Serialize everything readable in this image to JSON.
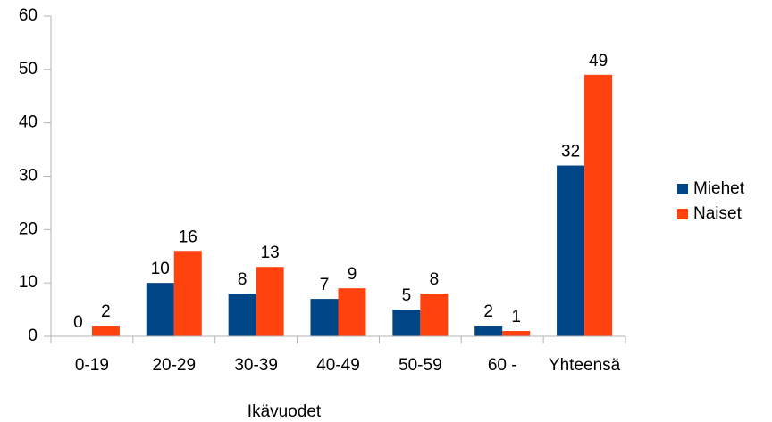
{
  "chart_data": {
    "type": "bar",
    "x_label": "Ikävuodet",
    "categories": [
      "0-19",
      "20-29",
      "30-39",
      "40-49",
      "50-59",
      "60 -",
      "Yhteensä"
    ],
    "series": [
      {
        "name": "Miehet",
        "color": "#004586",
        "values": [
          0,
          10,
          8,
          7,
          5,
          2,
          32
        ]
      },
      {
        "name": "Naiset",
        "color": "#ff420e",
        "values": [
          2,
          16,
          13,
          9,
          8,
          1,
          49
        ]
      }
    ],
    "ylim": [
      0,
      60
    ],
    "yticks": [
      0,
      10,
      20,
      30,
      40,
      50,
      60
    ],
    "grid": false,
    "legend": "right"
  }
}
